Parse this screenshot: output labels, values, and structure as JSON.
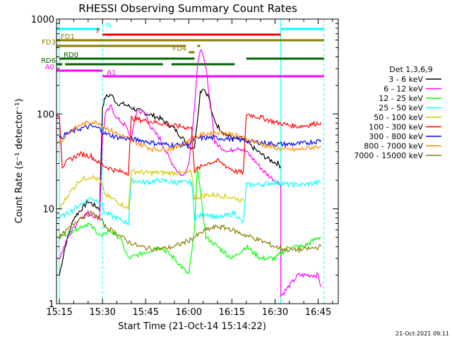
{
  "chart_data": {
    "type": "line",
    "title": "RHESSI Observing Summary Count Rates",
    "xlabel": "Start Time (21-Oct-14 15:14:22)",
    "ylabel": "Count Rate (s⁻¹ detector⁻¹)",
    "x_unit": "UT minutes (21-Oct-14)",
    "xlim": [
      "15:14",
      "16:52"
    ],
    "ylim": [
      1,
      1000
    ],
    "yscale": "log",
    "x_ticks": [
      "15:15",
      "15:30",
      "15:45",
      "16:00",
      "16:15",
      "16:30",
      "16:45"
    ],
    "y_ticks": [
      "1",
      "10",
      "100",
      "1000"
    ],
    "timestamp": "21-Oct-2021 09:11",
    "legend_title": "Det 1,3,6,9",
    "legend_position": "right",
    "series": [
      {
        "name": "3 - 6 keV",
        "color": "#000000",
        "points": [
          [
            "15:15",
            2
          ],
          [
            "15:17",
            4
          ],
          [
            "15:20",
            8
          ],
          [
            "15:25",
            12
          ],
          [
            "15:29",
            10
          ],
          [
            "15:30",
            120
          ],
          [
            "15:31",
            150
          ],
          [
            "15:33",
            160
          ],
          [
            "15:35",
            130
          ],
          [
            "15:38",
            125
          ],
          [
            "15:42",
            110
          ],
          [
            "15:46",
            100
          ],
          [
            "15:50",
            90
          ],
          [
            "15:55",
            70
          ],
          [
            "15:58",
            55
          ],
          [
            "16:00",
            45
          ],
          [
            "16:02",
            45
          ],
          [
            "16:04",
            170
          ],
          [
            "16:05",
            190
          ],
          [
            "16:07",
            150
          ],
          [
            "16:08",
            100
          ],
          [
            "16:10",
            75
          ],
          [
            "16:13",
            60
          ],
          [
            "16:16",
            55
          ],
          [
            "16:19",
            55
          ],
          [
            "16:22",
            45
          ],
          [
            "16:25",
            38
          ],
          [
            "16:28",
            33
          ],
          [
            "16:31",
            30
          ],
          [
            "16:32",
            28
          ]
        ]
      },
      {
        "name": "6 - 12 keV",
        "color": "#ff00ff",
        "points": [
          [
            "15:15",
            3
          ],
          [
            "15:18",
            5
          ],
          [
            "15:22",
            8
          ],
          [
            "15:25",
            9
          ],
          [
            "15:29",
            8
          ],
          [
            "15:30",
            55
          ],
          [
            "15:31",
            100
          ],
          [
            "15:33",
            120
          ],
          [
            "15:35",
            90
          ],
          [
            "15:38",
            75
          ],
          [
            "15:40",
            55
          ],
          [
            "15:42",
            110
          ],
          [
            "15:45",
            100
          ],
          [
            "15:47",
            70
          ],
          [
            "15:50",
            55
          ],
          [
            "15:53",
            35
          ],
          [
            "15:56",
            25
          ],
          [
            "15:58",
            22
          ],
          [
            "16:00",
            30
          ],
          [
            "16:02",
            120
          ],
          [
            "16:03",
            300
          ],
          [
            "16:04",
            500
          ],
          [
            "16:06",
            300
          ],
          [
            "16:08",
            100
          ],
          [
            "16:09",
            50
          ],
          [
            "16:11",
            45
          ],
          [
            "16:14",
            40
          ],
          [
            "16:17",
            45
          ],
          [
            "16:20",
            40
          ],
          [
            "16:23",
            32
          ],
          [
            "16:26",
            25
          ],
          [
            "16:28",
            22
          ],
          [
            "16:30",
            20
          ],
          [
            "16:32",
            18
          ],
          [
            "16:32",
            1.2
          ],
          [
            "16:38",
            2
          ],
          [
            "16:45",
            2
          ],
          [
            "16:46",
            1.5
          ]
        ]
      },
      {
        "name": "12 - 25 keV",
        "color": "#00ff00",
        "points": [
          [
            "15:15",
            5
          ],
          [
            "15:20",
            6
          ],
          [
            "15:25",
            7
          ],
          [
            "15:30",
            5
          ],
          [
            "15:32",
            6
          ],
          [
            "15:36",
            5
          ],
          [
            "15:39",
            3
          ],
          [
            "15:45",
            3.5
          ],
          [
            "15:50",
            4
          ],
          [
            "15:55",
            3
          ],
          [
            "16:00",
            2
          ],
          [
            "16:02",
            6
          ],
          [
            "16:03",
            30
          ],
          [
            "16:04",
            15
          ],
          [
            "16:06",
            5
          ],
          [
            "16:10",
            4
          ],
          [
            "16:15",
            3
          ],
          [
            "16:20",
            4
          ],
          [
            "16:25",
            3
          ],
          [
            "16:30",
            3
          ],
          [
            "16:35",
            4
          ],
          [
            "16:40",
            4
          ],
          [
            "16:45",
            5
          ],
          [
            "16:46",
            5
          ]
        ]
      },
      {
        "name": "25 - 50 keV",
        "color": "#00ffff",
        "points": [
          [
            "15:15",
            8
          ],
          [
            "15:18",
            9
          ],
          [
            "15:22",
            11
          ],
          [
            "15:26",
            13
          ],
          [
            "15:29",
            12
          ],
          [
            "15:31",
            9
          ],
          [
            "15:35",
            8
          ],
          [
            "15:39",
            7
          ],
          [
            "15:40",
            20
          ],
          [
            "15:45",
            19
          ],
          [
            "15:50",
            20
          ],
          [
            "15:55",
            19
          ],
          [
            "16:00",
            19
          ],
          [
            "16:01",
            19
          ],
          [
            "16:02",
            8
          ],
          [
            "16:06",
            9
          ],
          [
            "16:10",
            8
          ],
          [
            "16:16",
            9
          ],
          [
            "16:19",
            7
          ],
          [
            "16:20",
            18
          ],
          [
            "16:25",
            18
          ],
          [
            "16:30",
            19
          ],
          [
            "16:35",
            18
          ],
          [
            "16:40",
            18
          ],
          [
            "16:45",
            19
          ],
          [
            "16:46",
            19
          ]
        ]
      },
      {
        "name": "50 - 100 keV",
        "color": "#d4c800",
        "points": [
          [
            "15:15",
            10
          ],
          [
            "15:18",
            14
          ],
          [
            "15:22",
            20
          ],
          [
            "15:26",
            22
          ],
          [
            "15:29",
            20
          ],
          [
            "15:31",
            14
          ],
          [
            "15:35",
            12
          ],
          [
            "15:39",
            10
          ],
          [
            "15:40",
            25
          ],
          [
            "15:45",
            24
          ],
          [
            "15:50",
            24
          ],
          [
            "15:55",
            24
          ],
          [
            "16:00",
            24
          ],
          [
            "16:01",
            24
          ],
          [
            "16:02",
            13
          ],
          [
            "16:06",
            14
          ],
          [
            "16:10",
            14
          ],
          [
            "16:16",
            13
          ],
          [
            "16:19",
            12
          ]
        ]
      },
      {
        "name": "100 - 300 keV",
        "color": "#ff0000",
        "points": [
          [
            "15:14",
            95
          ],
          [
            "15:15",
            100
          ],
          [
            "15:16",
            28
          ],
          [
            "15:18",
            32
          ],
          [
            "15:22",
            38
          ],
          [
            "15:26",
            36
          ],
          [
            "15:29",
            30
          ],
          [
            "15:31",
            28
          ],
          [
            "15:35",
            25
          ],
          [
            "15:39",
            24
          ],
          [
            "15:40",
            90
          ],
          [
            "15:45",
            85
          ],
          [
            "15:50",
            80
          ],
          [
            "15:55",
            75
          ],
          [
            "16:00",
            72
          ],
          [
            "16:01",
            70
          ],
          [
            "16:02",
            25
          ],
          [
            "16:06",
            30
          ],
          [
            "16:10",
            32
          ],
          [
            "16:16",
            25
          ],
          [
            "16:19",
            24
          ],
          [
            "16:20",
            100
          ],
          [
            "16:25",
            92
          ],
          [
            "16:30",
            82
          ],
          [
            "16:35",
            76
          ],
          [
            "16:38",
            74
          ],
          [
            "16:41",
            76
          ],
          [
            "16:45",
            80
          ],
          [
            "16:46",
            82
          ]
        ]
      },
      {
        "name": "300 - 800 keV",
        "color": "#0000ff",
        "points": [
          [
            "15:15",
            55
          ],
          [
            "15:18",
            63
          ],
          [
            "15:22",
            70
          ],
          [
            "15:26",
            74
          ],
          [
            "15:29",
            70
          ],
          [
            "15:31",
            62
          ],
          [
            "15:35",
            57
          ],
          [
            "15:39",
            55
          ],
          [
            "15:43",
            53
          ],
          [
            "15:47",
            50
          ],
          [
            "15:51",
            48
          ],
          [
            "15:55",
            47
          ],
          [
            "15:59",
            48
          ],
          [
            "16:01",
            50
          ],
          [
            "16:02",
            55
          ],
          [
            "16:06",
            56
          ],
          [
            "16:10",
            56
          ],
          [
            "16:16",
            54
          ],
          [
            "16:19",
            53
          ],
          [
            "16:22",
            51
          ],
          [
            "16:25",
            50
          ],
          [
            "16:30",
            48
          ],
          [
            "16:35",
            48
          ],
          [
            "16:40",
            49
          ],
          [
            "16:45",
            52
          ],
          [
            "16:46",
            53
          ]
        ]
      },
      {
        "name": "800 - 7000 keV",
        "color": "#ff8800",
        "points": [
          [
            "15:15",
            50
          ],
          [
            "15:18",
            62
          ],
          [
            "15:22",
            76
          ],
          [
            "15:26",
            83
          ],
          [
            "15:29",
            80
          ],
          [
            "15:31",
            72
          ],
          [
            "15:35",
            62
          ],
          [
            "15:39",
            55
          ],
          [
            "15:43",
            48
          ],
          [
            "15:47",
            43
          ],
          [
            "15:51",
            42
          ],
          [
            "15:55",
            44
          ],
          [
            "15:59",
            50
          ],
          [
            "16:02",
            56
          ],
          [
            "16:06",
            62
          ],
          [
            "16:10",
            64
          ],
          [
            "16:14",
            62
          ],
          [
            "16:18",
            57
          ],
          [
            "16:22",
            52
          ],
          [
            "16:26",
            47
          ],
          [
            "16:30",
            44
          ],
          [
            "16:34",
            42
          ],
          [
            "16:38",
            42
          ],
          [
            "16:42",
            44
          ],
          [
            "16:46",
            46
          ]
        ]
      },
      {
        "name": "7000 - 15000 keV",
        "color": "#8b7d00",
        "points": [
          [
            "15:15",
            5
          ],
          [
            "15:18",
            6
          ],
          [
            "15:22",
            8
          ],
          [
            "15:26",
            9
          ],
          [
            "15:29",
            8
          ],
          [
            "15:31",
            6.5
          ],
          [
            "15:35",
            5.5
          ],
          [
            "15:39",
            4.5
          ],
          [
            "15:43",
            4
          ],
          [
            "15:47",
            3.8
          ],
          [
            "15:51",
            3.8
          ],
          [
            "15:55",
            4
          ],
          [
            "15:59",
            4.5
          ],
          [
            "16:02",
            5
          ],
          [
            "16:06",
            6
          ],
          [
            "16:10",
            6.5
          ],
          [
            "16:14",
            6.2
          ],
          [
            "16:18",
            5.5
          ],
          [
            "16:22",
            5
          ],
          [
            "16:26",
            4.5
          ],
          [
            "16:30",
            4
          ],
          [
            "16:34",
            3.7
          ],
          [
            "16:38",
            3.7
          ],
          [
            "16:42",
            3.8
          ],
          [
            "16:46",
            4
          ]
        ]
      }
    ],
    "flag_bars": [
      {
        "label": "N",
        "color": "#00ffff",
        "start": "15:14",
        "end": "15:29",
        "level": 0
      },
      {
        "label": "",
        "color": "#00ffff",
        "start": "16:32",
        "end": "16:47",
        "level": 0
      },
      {
        "label": "F",
        "color": "#ff0000",
        "start": "15:30",
        "end": "16:32",
        "level": 1
      },
      {
        "label": "FD1",
        "color": "#8b7d00",
        "start": "15:14",
        "end": "16:47",
        "level": 2
      },
      {
        "label": "FD3",
        "color": "#8b7d00",
        "start": "15:14",
        "end": "15:59",
        "level": 3
      },
      {
        "label": "FD4",
        "color": "#8b7d00",
        "start": "16:00",
        "end": "16:02",
        "level": 4
      },
      {
        "label": "",
        "color": "#8b7d00",
        "start": "16:03",
        "end": "16:04",
        "level": 3
      },
      {
        "label": "RD0",
        "color": "#006600",
        "start": "15:15",
        "end": "16:02",
        "level": 5
      },
      {
        "label": "",
        "color": "#006600",
        "start": "16:20",
        "end": "16:47",
        "level": 5
      },
      {
        "label": "RD6",
        "color": "#006600",
        "start": "15:14",
        "end": "15:16",
        "level": 6
      },
      {
        "label": "",
        "color": "#006600",
        "start": "15:17",
        "end": "15:51",
        "level": 6
      },
      {
        "label": "",
        "color": "#006600",
        "start": "15:54",
        "end": "16:16",
        "level": 6
      },
      {
        "label": "A0",
        "color": "#ff00ff",
        "start": "15:14",
        "end": "15:30",
        "level": 7
      },
      {
        "label": "A1",
        "color": "#ff00ff",
        "start": "15:30",
        "end": "16:47",
        "level": 8
      }
    ],
    "vlines": [
      {
        "time": "15:15",
        "color": "#00ffff",
        "style": "solid"
      },
      {
        "time": "15:30",
        "color": "#00ffff",
        "style": "dashed"
      },
      {
        "time": "16:32",
        "color": "#00ffff",
        "style": "solid"
      },
      {
        "time": "16:47",
        "color": "#00ffff",
        "style": "dashed"
      }
    ]
  }
}
